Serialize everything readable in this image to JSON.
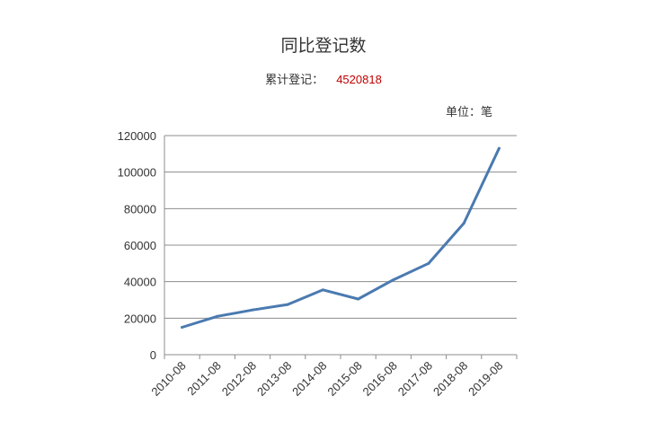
{
  "chart_data": {
    "type": "line",
    "title": "同比登记数",
    "total_label": "累计登记：",
    "total_value": "4520818",
    "unit_label": "单位：笔",
    "categories": [
      "2010-08",
      "2011-08",
      "2012-08",
      "2013-08",
      "2014-08",
      "2015-08",
      "2016-08",
      "2017-08",
      "2018-08",
      "2019-08"
    ],
    "series": [
      {
        "name": "",
        "color": "#4a7ab0",
        "values": [
          15000,
          21000,
          24500,
          27500,
          35500,
          30500,
          41000,
          50000,
          72000,
          113000
        ]
      }
    ],
    "ylim": [
      0,
      120000
    ],
    "yticks": [
      0,
      20000,
      40000,
      60000,
      80000,
      100000,
      120000
    ],
    "grid": true,
    "legend": "none"
  }
}
